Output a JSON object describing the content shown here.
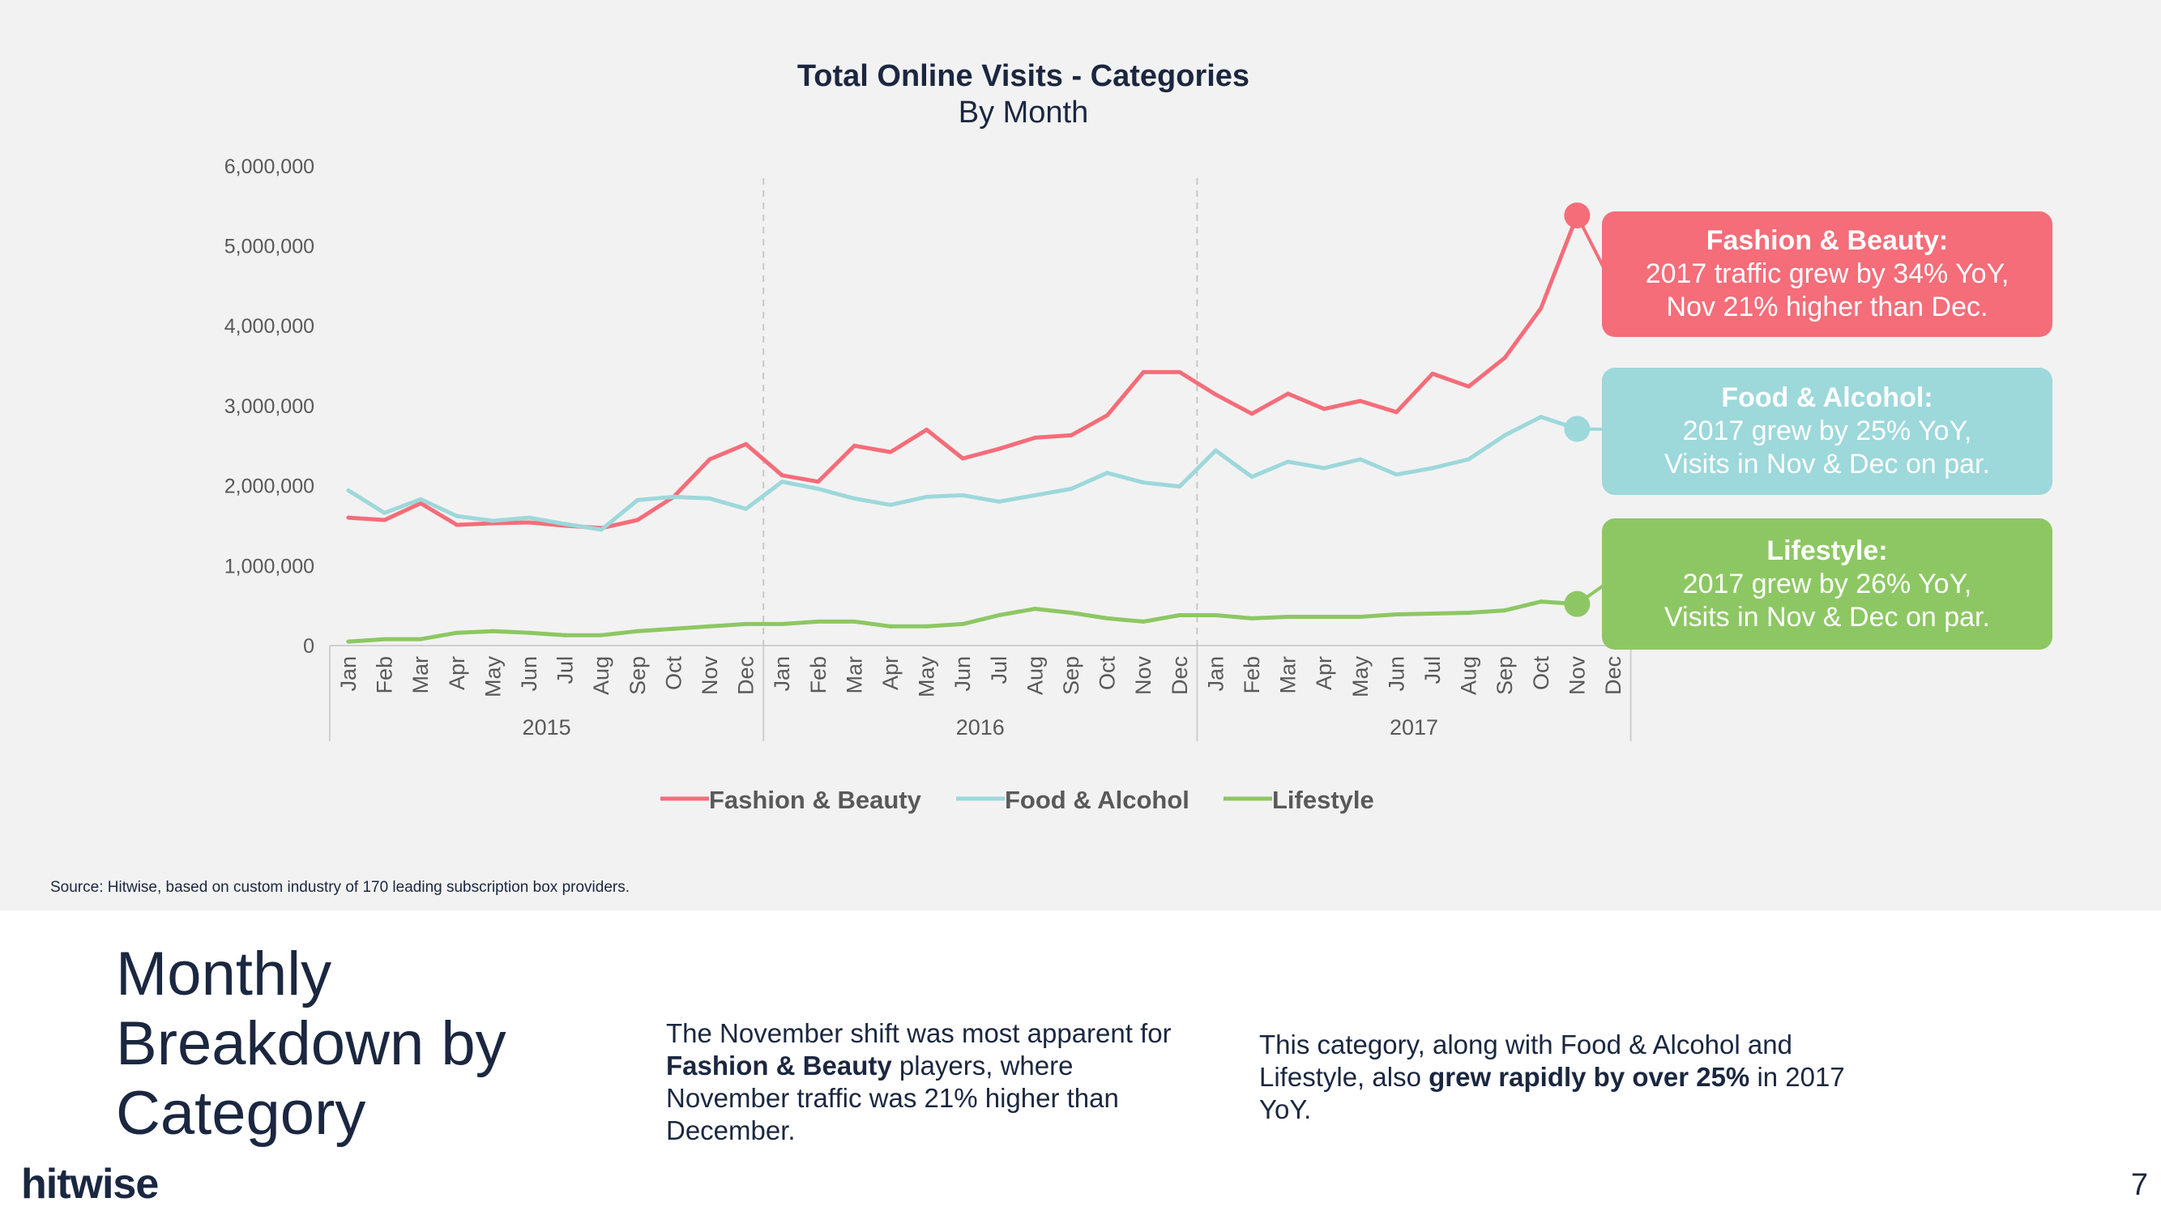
{
  "colors": {
    "fashion": "#f46d79",
    "food": "#9dd8db",
    "lifestyle": "#8dc763",
    "panel": "#f2f2f2",
    "text_dark": "#1b2740"
  },
  "chart_data": {
    "type": "line",
    "title": "Total Online Visits - Categories",
    "subtitle": "By Month",
    "ylim": [
      0,
      6000000
    ],
    "yticks": [
      0,
      1000000,
      2000000,
      3000000,
      4000000,
      5000000,
      6000000
    ],
    "ytick_labels": [
      "0",
      "1,000,000",
      "2,000,000",
      "3,000,000",
      "4,000,000",
      "5,000,000",
      "6,000,000"
    ],
    "years": [
      "2015",
      "2016",
      "2017"
    ],
    "months": [
      "Jan",
      "Feb",
      "Mar",
      "Apr",
      "May",
      "Jun",
      "Jul",
      "Aug",
      "Sep",
      "Oct",
      "Nov",
      "Dec",
      "Jan",
      "Feb",
      "Mar",
      "Apr",
      "May",
      "Jun",
      "Jul",
      "Aug",
      "Sep",
      "Oct",
      "Nov",
      "Dec",
      "Jan",
      "Feb",
      "Mar",
      "Apr",
      "May",
      "Jun",
      "Jul",
      "Aug",
      "Sep",
      "Oct",
      "Nov",
      "Dec"
    ],
    "series": [
      {
        "name": "Fashion & Beauty",
        "color": "#f46d79",
        "values": [
          1600000,
          1570000,
          1780000,
          1510000,
          1530000,
          1540000,
          1500000,
          1470000,
          1570000,
          1860000,
          2330000,
          2520000,
          2130000,
          2050000,
          2500000,
          2420000,
          2700000,
          2340000,
          2460000,
          2600000,
          2630000,
          2880000,
          3420000,
          3420000,
          3140000,
          2900000,
          3150000,
          2960000,
          3060000,
          2920000,
          3400000,
          3240000,
          3600000,
          4220000,
          5380000,
          null
        ]
      },
      {
        "name": "Food & Alcohol",
        "color": "#9dd8db",
        "values": [
          1940000,
          1660000,
          1830000,
          1620000,
          1560000,
          1600000,
          1520000,
          1450000,
          1820000,
          1860000,
          1840000,
          1710000,
          2050000,
          1960000,
          1840000,
          1760000,
          1860000,
          1880000,
          1800000,
          1880000,
          1960000,
          2160000,
          2040000,
          1990000,
          2440000,
          2110000,
          2300000,
          2220000,
          2330000,
          2140000,
          2220000,
          2330000,
          2630000,
          2860000,
          2710000,
          null
        ]
      },
      {
        "name": "Lifestyle",
        "color": "#8dc763",
        "values": [
          50000,
          80000,
          80000,
          160000,
          180000,
          160000,
          130000,
          130000,
          180000,
          210000,
          240000,
          270000,
          270000,
          300000,
          300000,
          240000,
          240000,
          270000,
          380000,
          460000,
          410000,
          340000,
          300000,
          380000,
          380000,
          340000,
          360000,
          360000,
          360000,
          390000,
          400000,
          410000,
          440000,
          550000,
          520000,
          null
        ]
      }
    ],
    "highlight_index": 34,
    "legend_position": "bottom-center",
    "grid": false
  },
  "callouts": {
    "fashion": {
      "title": "Fashion & Beauty:",
      "line1": "2017 traffic grew by 34% YoY,",
      "line2": "Nov 21% higher than Dec."
    },
    "food": {
      "title": "Food & Alcohol:",
      "line1": "2017 grew by 25% YoY,",
      "line2": "Visits in Nov & Dec on par."
    },
    "lifestyle": {
      "title": "Lifestyle:",
      "line1": "2017 grew by 26% YoY,",
      "line2": "Visits in Nov & Dec on par."
    }
  },
  "source_note": "Source: Hitwise, based on custom industry of 170 leading subscription box providers.",
  "headline": "Monthly Breakdown by Category",
  "text_col_1": {
    "before": "The November shift was most apparent for ",
    "bold": "Fashion & Beauty",
    "after": " players, where November traffic was 21% higher than December."
  },
  "text_col_2": {
    "before": "This category, along with Food & Alcohol and Lifestyle, also ",
    "bold": "grew rapidly by over 25%",
    "after": " in 2017 YoY."
  },
  "logo_text": "hitwise",
  "page_number": "7"
}
